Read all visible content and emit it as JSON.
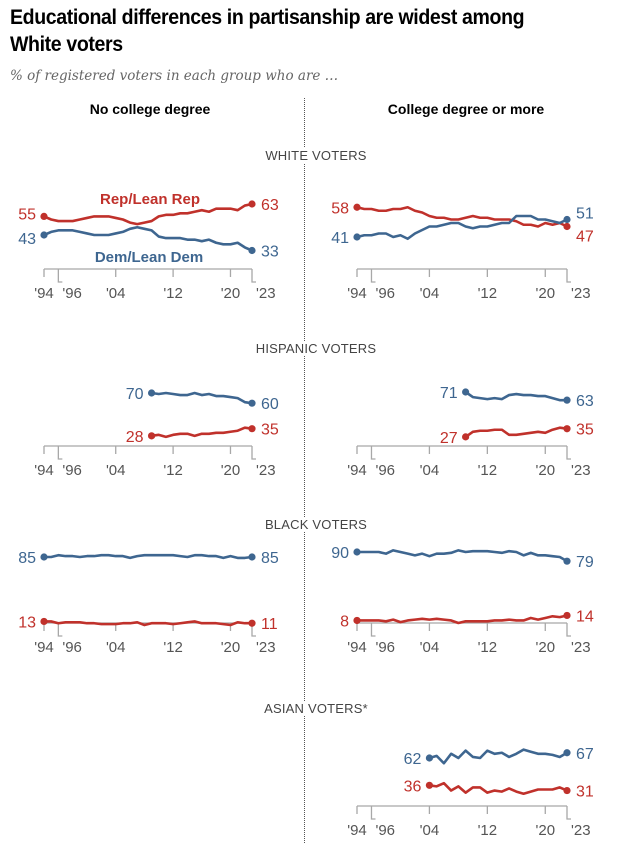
{
  "title": "Educational differences in partisanship are widest among White voters",
  "subtitle": "% of registered voters in each group who are …",
  "columns": [
    "No college degree",
    "College degree or more"
  ],
  "colors": {
    "rep": "#c0312b",
    "dem": "#3e6690",
    "axis": "#a8a8a8",
    "tick_text": "#555555",
    "divider": "#555555"
  },
  "chart_data": {
    "type": "line",
    "title": "Educational differences in partisanship are widest among White voters",
    "subtitle": "% of registered voters in each group who are …",
    "xlabel": "",
    "ylabel": "%",
    "x_range": [
      1994,
      2023
    ],
    "x_ticks": [
      "'94",
      "'96",
      "'04",
      "'12",
      "'20",
      "'23"
    ],
    "x_tick_years": [
      1994,
      1996,
      2004,
      2012,
      2020,
      2023
    ],
    "grid": false,
    "legend": {
      "entries": [
        "Rep/Lean Rep",
        "Dem/Lean Dem"
      ],
      "placement": "inline, White voters no-college panel"
    },
    "panels": [
      {
        "group": "WHITE VOTERS",
        "column": "No college degree",
        "x": [
          1994,
          1995,
          1996,
          1997,
          1998,
          1999,
          2000,
          2001,
          2002,
          2003,
          2004,
          2005,
          2006,
          2007,
          2008,
          2009,
          2010,
          2011,
          2012,
          2013,
          2014,
          2015,
          2016,
          2017,
          2018,
          2019,
          2020,
          2021,
          2022,
          2023
        ],
        "series": [
          {
            "name": "Rep/Lean Rep",
            "values": [
              55,
              53,
              52,
              52,
              52,
              53,
              54,
              55,
              55,
              55,
              54,
              53,
              51,
              50,
              51,
              52,
              55,
              56,
              56,
              57,
              57,
              58,
              59,
              58,
              60,
              60,
              60,
              59,
              62,
              63
            ],
            "start_label": "55",
            "end_label": "63"
          },
          {
            "name": "Dem/Lean Dem",
            "values": [
              43,
              45,
              46,
              46,
              46,
              45,
              44,
              43,
              43,
              43,
              44,
              45,
              47,
              48,
              47,
              46,
              42,
              41,
              41,
              41,
              40,
              40,
              39,
              40,
              38,
              37,
              37,
              38,
              35,
              33
            ],
            "start_label": "43",
            "end_label": "33"
          }
        ]
      },
      {
        "group": "WHITE VOTERS",
        "column": "College degree or more",
        "x": [
          1994,
          1995,
          1996,
          1997,
          1998,
          1999,
          2000,
          2001,
          2002,
          2003,
          2004,
          2005,
          2006,
          2007,
          2008,
          2009,
          2010,
          2011,
          2012,
          2013,
          2014,
          2015,
          2016,
          2017,
          2018,
          2019,
          2020,
          2021,
          2022,
          2023
        ],
        "series": [
          {
            "name": "Rep/Lean Rep",
            "values": [
              58,
              57,
              57,
              56,
              56,
              57,
              57,
              58,
              56,
              55,
              53,
              52,
              52,
              51,
              51,
              52,
              53,
              52,
              52,
              51,
              51,
              51,
              50,
              48,
              48,
              47,
              49,
              48,
              49,
              47
            ],
            "start_label": "58",
            "end_label": "47"
          },
          {
            "name": "Dem/Lean Dem",
            "values": [
              41,
              42,
              42,
              43,
              43,
              41,
              42,
              40,
              43,
              45,
              47,
              47,
              48,
              49,
              49,
              47,
              46,
              47,
              47,
              48,
              49,
              49,
              53,
              53,
              53,
              51,
              51,
              50,
              49,
              51
            ],
            "start_label": "41",
            "end_label": "51"
          }
        ]
      },
      {
        "group": "HISPANIC VOTERS",
        "column": "No college degree",
        "x": [
          2009,
          2010,
          2011,
          2012,
          2013,
          2014,
          2015,
          2016,
          2017,
          2018,
          2019,
          2020,
          2021,
          2022,
          2023
        ],
        "series": [
          {
            "name": "Rep/Lean Rep",
            "values": [
              28,
              29,
              27,
              29,
              30,
              30,
              28,
              30,
              30,
              31,
              31,
              32,
              33,
              36,
              35
            ],
            "start_label": "28",
            "end_label": "35"
          },
          {
            "name": "Dem/Lean Dem",
            "values": [
              70,
              69,
              70,
              69,
              68,
              68,
              70,
              68,
              69,
              67,
              67,
              66,
              65,
              61,
              60
            ],
            "start_label": "70",
            "end_label": "60"
          }
        ]
      },
      {
        "group": "HISPANIC VOTERS",
        "column": "College degree or more",
        "x": [
          2009,
          2010,
          2011,
          2012,
          2013,
          2014,
          2015,
          2016,
          2017,
          2018,
          2019,
          2020,
          2021,
          2022,
          2023
        ],
        "series": [
          {
            "name": "Rep/Lean Rep",
            "values": [
              27,
              32,
              33,
              33,
              34,
              34,
              29,
              29,
              30,
              31,
              32,
              31,
              34,
              36,
              35
            ],
            "start_label": "27",
            "end_label": "35"
          },
          {
            "name": "Dem/Lean Dem",
            "values": [
              71,
              66,
              65,
              64,
              65,
              64,
              68,
              69,
              68,
              68,
              67,
              67,
              65,
              63,
              63
            ],
            "start_label": "71",
            "end_label": "63"
          }
        ]
      },
      {
        "group": "BLACK VOTERS",
        "column": "No college degree",
        "x": [
          1994,
          1995,
          1996,
          1997,
          1998,
          1999,
          2000,
          2001,
          2002,
          2003,
          2004,
          2005,
          2006,
          2007,
          2008,
          2009,
          2010,
          2011,
          2012,
          2013,
          2014,
          2015,
          2016,
          2017,
          2018,
          2019,
          2020,
          2021,
          2022,
          2023
        ],
        "series": [
          {
            "name": "Rep/Lean Rep",
            "values": [
              13,
              13,
              11,
              12,
              12,
              12,
              11,
              11,
              10,
              10,
              10,
              11,
              11,
              12,
              9,
              11,
              11,
              11,
              10,
              11,
              12,
              13,
              11,
              11,
              11,
              10,
              9,
              12,
              11,
              11
            ],
            "start_label": "13",
            "end_label": "11"
          },
          {
            "name": "Dem/Lean Dem",
            "values": [
              85,
              85,
              87,
              86,
              86,
              85,
              86,
              86,
              87,
              87,
              86,
              86,
              84,
              86,
              87,
              87,
              87,
              87,
              87,
              86,
              85,
              87,
              87,
              86,
              86,
              84,
              86,
              84,
              84,
              85
            ],
            "start_label": "85",
            "end_label": "85"
          }
        ]
      },
      {
        "group": "BLACK VOTERS",
        "column": "College degree or more",
        "x": [
          1994,
          1995,
          1996,
          1997,
          1998,
          1999,
          2000,
          2001,
          2002,
          2003,
          2004,
          2005,
          2006,
          2007,
          2008,
          2009,
          2010,
          2011,
          2012,
          2013,
          2014,
          2015,
          2016,
          2017,
          2018,
          2019,
          2020,
          2021,
          2022,
          2023
        ],
        "series": [
          {
            "name": "Rep/Lean Rep",
            "values": [
              8,
              8,
              8,
              8,
              7,
              9,
              6,
              8,
              9,
              10,
              9,
              10,
              9,
              8,
              5,
              7,
              7,
              7,
              7,
              8,
              8,
              9,
              8,
              8,
              11,
              9,
              11,
              13,
              12,
              14
            ],
            "start_label": "8",
            "end_label": "14"
          },
          {
            "name": "Dem/Lean Dem",
            "values": [
              90,
              90,
              90,
              90,
              88,
              92,
              90,
              88,
              86,
              88,
              85,
              88,
              88,
              89,
              92,
              90,
              91,
              91,
              91,
              90,
              89,
              91,
              90,
              86,
              89,
              86,
              86,
              85,
              84,
              79
            ],
            "start_label": "90",
            "end_label": "79"
          }
        ]
      },
      {
        "group": "ASIAN VOTERS*",
        "column": "College degree or more",
        "x": [
          2004,
          2005,
          2006,
          2007,
          2008,
          2009,
          2010,
          2011,
          2012,
          2013,
          2014,
          2015,
          2016,
          2017,
          2018,
          2019,
          2020,
          2021,
          2022,
          2023
        ],
        "series": [
          {
            "name": "Rep/Lean Rep",
            "values": [
              36,
              35,
              38,
              31,
              35,
              29,
              34,
              34,
              29,
              31,
              30,
              33,
              30,
              28,
              30,
              32,
              32,
              32,
              34,
              31
            ],
            "start_label": "36",
            "end_label": "31"
          },
          {
            "name": "Dem/Lean Dem",
            "values": [
              62,
              64,
              57,
              66,
              62,
              69,
              63,
              62,
              69,
              66,
              67,
              63,
              66,
              70,
              68,
              66,
              66,
              65,
              63,
              67
            ],
            "start_label": "62",
            "end_label": "67"
          }
        ]
      }
    ]
  }
}
